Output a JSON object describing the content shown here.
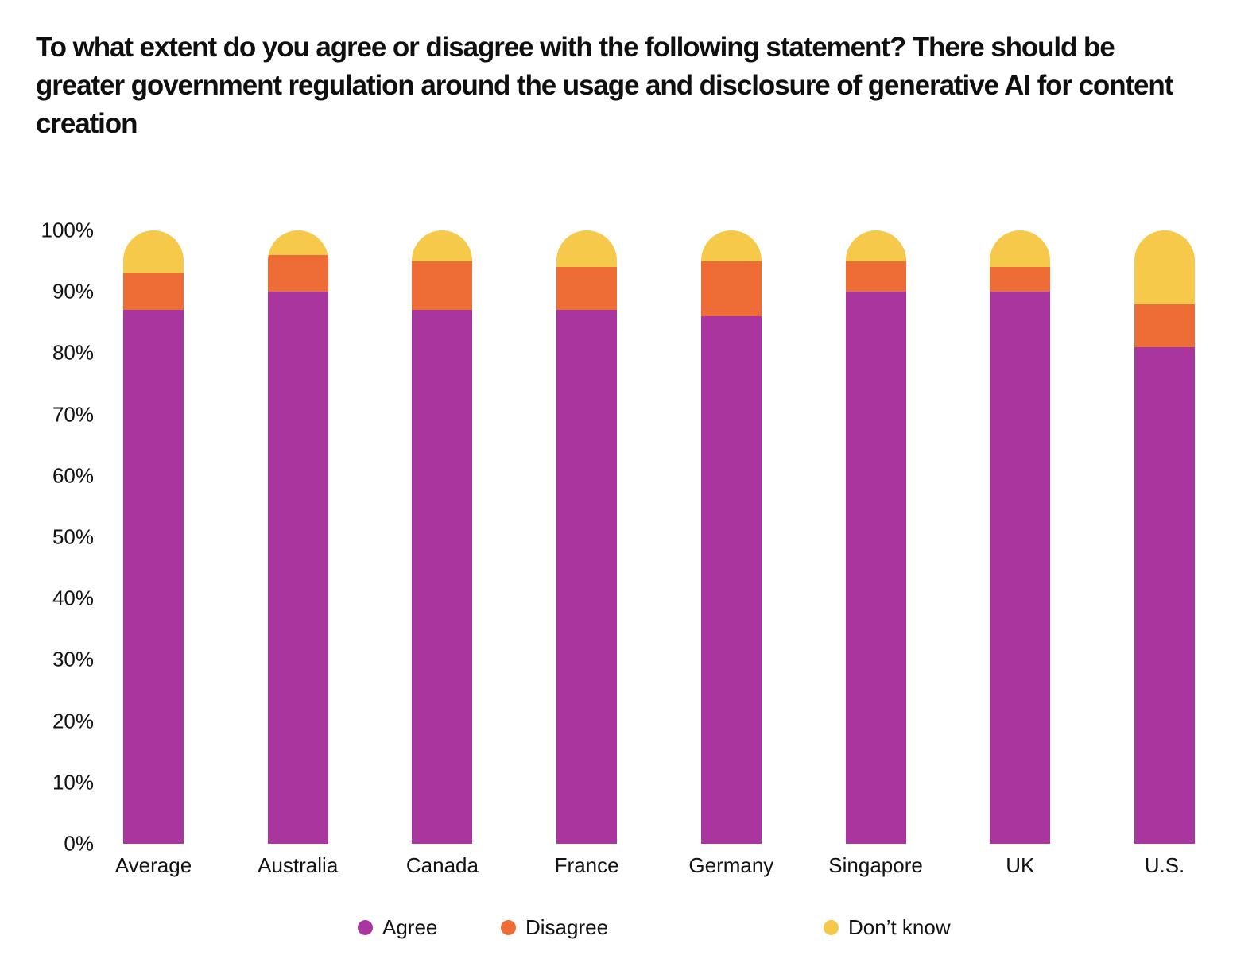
{
  "chart_data": {
    "type": "bar",
    "stacked": true,
    "title": "To what extent do you agree or disagree with the following statement? There should be greater government regulation around the usage and disclosure of generative AI for content creation",
    "categories": [
      "Average",
      "Australia",
      "Canada",
      "France",
      "Germany",
      "Singapore",
      "UK",
      "U.S."
    ],
    "series": [
      {
        "name": "Agree",
        "color": "#A8369E",
        "values": [
          87,
          90,
          87,
          87,
          86,
          90,
          90,
          81
        ]
      },
      {
        "name": "Disagree",
        "color": "#EE6C36",
        "values": [
          6,
          6,
          8,
          7,
          9,
          5,
          4,
          7
        ]
      },
      {
        "name": "Don’t know",
        "color": "#F6C94B",
        "values": [
          7,
          4,
          5,
          6,
          5,
          5,
          6,
          12
        ]
      }
    ],
    "y_ticks": [
      "100%",
      "90%",
      "80%",
      "70%",
      "60%",
      "50%",
      "40%",
      "30%",
      "20%",
      "10%",
      "0%"
    ],
    "ylim": [
      0,
      100
    ],
    "xlabel": "",
    "ylabel": "",
    "grid": false,
    "axis_lines": false,
    "legend_position": "bottom",
    "text_color": "#0f0f0f",
    "background": "#ffffff"
  }
}
